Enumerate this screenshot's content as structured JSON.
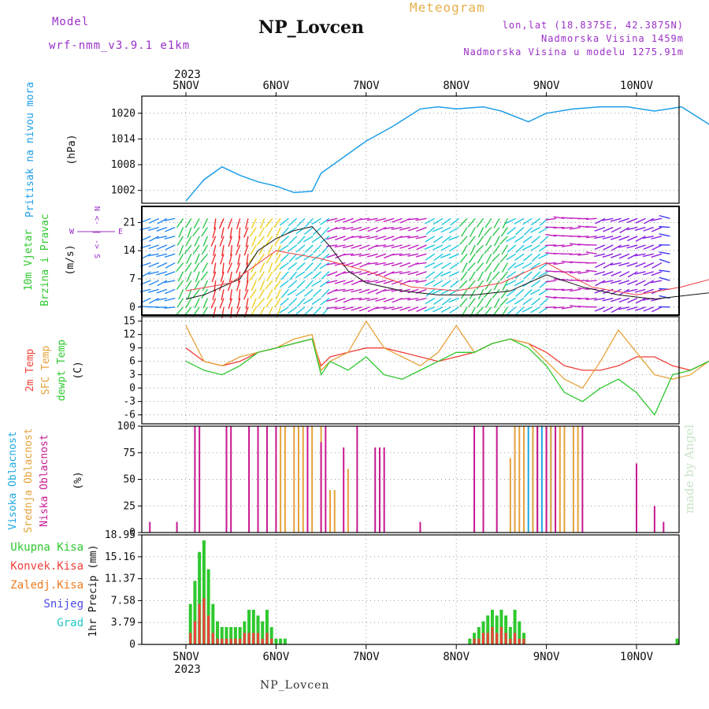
{
  "header": {
    "model_label": "Model",
    "model_value": "wrf-nmm_v3.9.1 e1km",
    "station": "NP_Lovcen",
    "meteogram": "Meteogram",
    "lonlat": "lon,lat (18.8375E, 42.3875N)",
    "elevation": "Nadmorska Visina 1459m",
    "elevation_model": "Nadmorska Visina u modelu 1275.91m"
  },
  "footer": {
    "station": "NP_Lovcen",
    "credit": "made by Angel"
  },
  "year": "2023",
  "colors": {
    "pressure": "#1e9ee8",
    "temp2m": "#f0403a",
    "sfc": "#e6a23a",
    "dewpt": "#2ec82e",
    "high": "#1ea8e0",
    "mid": "#e6a23a",
    "low": "#c81890",
    "total": "#2ec82e",
    "conv": "#f0403a",
    "frozen": "#f07a1e",
    "snow": "#4a4ae6",
    "graupel": "#1ec8c8",
    "model": "#9b30c8"
  },
  "chart_data": [
    {
      "type": "line",
      "panel": "pressure",
      "ylabel": "Pritisak na nivou mora",
      "unit": "(hPa)",
      "ylim": [
        999,
        1024
      ],
      "yticks": [
        "1002",
        "1008",
        "1014",
        "1020"
      ],
      "x_dates": [
        "5NOV",
        "6NOV",
        "7NOV",
        "8NOV",
        "9NOV",
        "10NOV"
      ],
      "x": [
        0,
        0.2,
        0.4,
        0.6,
        0.8,
        1.0,
        1.2,
        1.4,
        1.5,
        1.7,
        1.8,
        2.0,
        2.3,
        2.6,
        2.8,
        3.0,
        3.3,
        3.5,
        3.8,
        4.0,
        4.3,
        4.6,
        4.9,
        5.2,
        5.5,
        5.8,
        6.0
      ],
      "values": [
        999.5,
        1004.5,
        1007.5,
        1005.5,
        1004.0,
        1003.0,
        1001.5,
        1001.8,
        1006.0,
        1009.0,
        1010.5,
        1013.5,
        1017.0,
        1021.0,
        1021.5,
        1021.0,
        1021.5,
        1020.5,
        1018.0,
        1020.0,
        1021.0,
        1021.5,
        1021.5,
        1020.5,
        1021.5,
        1017.5,
        1015.0
      ]
    },
    {
      "type": "line",
      "panel": "wind",
      "ylabel": "10m Vjetar Brzina i Pravac",
      "unit": "(m/s)",
      "ylim": [
        -2,
        25
      ],
      "yticks": [
        "0",
        "7",
        "14",
        "21"
      ],
      "compass": "N <- | -> S",
      "compass_e": "E",
      "compass_w": "W",
      "series": [
        {
          "name": "speed",
          "x": [
            0,
            0.2,
            0.4,
            0.6,
            0.8,
            1.0,
            1.2,
            1.4,
            1.6,
            1.8,
            2.0,
            2.4,
            2.8,
            3.2,
            3.6,
            4.0,
            4.4,
            4.8,
            5.2,
            5.6,
            6.0
          ],
          "values": [
            2,
            3,
            5,
            7,
            14,
            17,
            19,
            20,
            15,
            9,
            6,
            4,
            3,
            3,
            4,
            8,
            5,
            3,
            2,
            3,
            4
          ]
        },
        {
          "name": "gust",
          "x": [
            0,
            0.5,
            1.0,
            1.5,
            2.0,
            2.5,
            3.0,
            3.5,
            4.0,
            4.5,
            5.0,
            5.5,
            6.0
          ],
          "values": [
            4,
            6,
            14,
            12,
            9,
            5,
            4,
            6,
            11,
            5,
            3,
            5,
            8
          ]
        }
      ]
    },
    {
      "type": "line",
      "panel": "temperature",
      "ylabel": "2m Temp / SFC Temp / dewpt Temp",
      "labels": [
        "2m Temp",
        "SFC Temp",
        "dewpt Temp"
      ],
      "unit": "(C)",
      "ylim": [
        -8,
        16
      ],
      "yticks": [
        "-6",
        "-3",
        "0",
        "3",
        "6",
        "9",
        "12",
        "15"
      ],
      "x": [
        0,
        0.2,
        0.4,
        0.6,
        0.8,
        1.0,
        1.2,
        1.4,
        1.5,
        1.6,
        1.8,
        2.0,
        2.2,
        2.4,
        2.6,
        2.8,
        3.0,
        3.2,
        3.4,
        3.6,
        3.8,
        4.0,
        4.2,
        4.4,
        4.6,
        4.8,
        5.0,
        5.2,
        5.4,
        5.6,
        5.8,
        6.0
      ],
      "series": [
        {
          "name": "2m Temp",
          "values": [
            9,
            6,
            5,
            6,
            8,
            9,
            10,
            11,
            5,
            7,
            8,
            9,
            9,
            8,
            7,
            6,
            7,
            8,
            10,
            11,
            10,
            8,
            5,
            4,
            4,
            5,
            7,
            7,
            5,
            4,
            6,
            7
          ]
        },
        {
          "name": "SFC Temp",
          "values": [
            14,
            6,
            5,
            7,
            8,
            9,
            11,
            12,
            4,
            6,
            8,
            15,
            9,
            7,
            5,
            8,
            14,
            8,
            10,
            11,
            10,
            6,
            2,
            0,
            6,
            13,
            8,
            3,
            2,
            3,
            6,
            9
          ]
        },
        {
          "name": "dewpt Temp",
          "values": [
            6,
            4,
            3,
            5,
            8,
            9,
            10,
            11,
            3,
            6,
            4,
            7,
            3,
            2,
            4,
            6,
            8,
            8,
            10,
            11,
            9,
            5,
            -1,
            -3,
            0,
            2,
            -1,
            -6,
            3,
            4,
            6,
            8
          ]
        }
      ]
    },
    {
      "type": "bar",
      "panel": "clouds",
      "labels": [
        "Visoka Oblacnost",
        "Srednja Oblacnost",
        "Niska Oblacnost"
      ],
      "unit": "(%)",
      "ylim": [
        0,
        100
      ],
      "yticks": [
        "0",
        "25",
        "50",
        "75",
        "100"
      ],
      "series": [
        {
          "name": "Visoka Oblacnost",
          "x": [
            3.75,
            3.8,
            3.85,
            3.9,
            3.95,
            4.05,
            5.95,
            5.98,
            6.0
          ],
          "values": [
            100,
            100,
            100,
            100,
            100,
            100,
            100,
            100,
            100
          ]
        },
        {
          "name": "Srednja Oblacnost",
          "x": [
            1.05,
            1.1,
            1.2,
            1.25,
            1.3,
            1.4,
            1.5,
            1.6,
            1.65,
            1.8,
            3.6,
            3.65,
            3.7,
            3.75,
            3.85,
            3.9,
            4.0,
            4.05,
            4.1,
            4.15,
            4.2,
            4.3,
            4.35
          ],
          "values": [
            100,
            100,
            100,
            100,
            100,
            100,
            100,
            40,
            40,
            60,
            70,
            100,
            100,
            100,
            100,
            100,
            100,
            100,
            100,
            100,
            100,
            100,
            100
          ]
        },
        {
          "name": "Niska Oblacnost",
          "x": [
            -0.4,
            -0.1,
            0.1,
            0.15,
            0.45,
            0.5,
            0.7,
            0.8,
            0.9,
            1.0,
            1.35,
            1.5,
            1.55,
            1.75,
            1.9,
            2.1,
            2.15,
            2.2,
            2.6,
            3.2,
            3.3,
            3.45,
            3.9,
            4.0,
            4.1,
            4.4,
            5.0,
            5.2,
            5.3,
            5.6,
            5.7,
            5.85,
            5.9
          ],
          "values": [
            10,
            10,
            100,
            100,
            100,
            100,
            100,
            100,
            100,
            100,
            100,
            85,
            100,
            80,
            100,
            80,
            80,
            80,
            10,
            100,
            100,
            100,
            100,
            100,
            100,
            100,
            65,
            25,
            10,
            100,
            100,
            100,
            100
          ]
        }
      ]
    },
    {
      "type": "bar",
      "panel": "precipitation",
      "ylabel": "1hr Precip (mm)",
      "labels": [
        "Ukupna Kisa",
        "Konvek.Kisa",
        "Zaledj.Kisa",
        "Snijeg",
        "Grad"
      ],
      "ylim": [
        0,
        18.95
      ],
      "yticks": [
        "0",
        "3.79",
        "7.58",
        "11.37",
        "15.16",
        "18.95"
      ],
      "x": [
        0.05,
        0.1,
        0.15,
        0.2,
        0.25,
        0.3,
        0.35,
        0.4,
        0.45,
        0.5,
        0.55,
        0.6,
        0.65,
        0.7,
        0.75,
        0.8,
        0.85,
        0.9,
        0.95,
        1.0,
        1.05,
        1.1,
        1.15,
        1.2,
        1.25,
        1.3,
        3.15,
        3.2,
        3.25,
        3.3,
        3.35,
        3.4,
        3.45,
        3.5,
        3.55,
        3.6,
        3.65,
        3.7,
        3.75,
        5.45
      ],
      "series": [
        {
          "name": "Ukupna Kisa",
          "values": [
            7,
            11,
            16,
            18,
            13,
            7,
            4,
            3,
            3,
            3,
            3,
            3,
            4,
            6,
            6,
            5,
            4,
            6,
            3,
            1,
            1,
            1,
            0,
            0,
            0,
            0,
            1,
            2,
            3,
            4,
            5,
            6,
            5,
            6,
            5,
            3,
            6,
            4,
            2,
            1
          ]
        },
        {
          "name": "Konvek.Kisa",
          "values": [
            2,
            4,
            7,
            8,
            5,
            2,
            1,
            1,
            1,
            1,
            1,
            1,
            2,
            2,
            2,
            2,
            1,
            2,
            1,
            0,
            0,
            0,
            0,
            0,
            0,
            0,
            0,
            1,
            1,
            2,
            2,
            3,
            2,
            3,
            2,
            1,
            2,
            1,
            1,
            0
          ]
        }
      ]
    }
  ]
}
